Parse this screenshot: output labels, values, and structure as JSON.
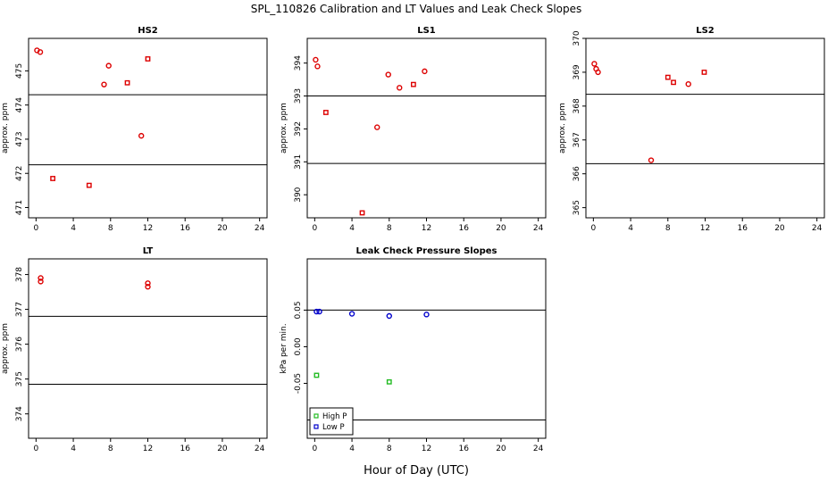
{
  "figure": {
    "title": "SPL_110826  Calibration and LT Values and Leak Check Slopes",
    "xlabel": "Hour of Day (UTC)"
  },
  "colors": {
    "red": "#dd0000",
    "green": "#22bb22",
    "blue": "#0000cc",
    "line": "#000000"
  },
  "chart_data": [
    {
      "type": "scatter",
      "title": "HS2",
      "ylabel": "approx. ppm",
      "xlim": [
        -0.8,
        24.8
      ],
      "ylim": [
        470.7,
        475.95
      ],
      "xticks": [
        0,
        4,
        8,
        12,
        16,
        20,
        24
      ],
      "yticks": [
        471,
        472,
        473,
        474,
        475
      ],
      "hlines": [
        474.3,
        472.25
      ],
      "series": [
        {
          "color": "red",
          "marker": "circle",
          "x": [
            0.1,
            0.45,
            7.3,
            7.8,
            11.3
          ],
          "y": [
            475.6,
            475.55,
            474.6,
            475.15,
            473.1
          ]
        },
        {
          "color": "red",
          "marker": "square",
          "x": [
            1.8,
            5.7,
            9.8,
            12.0
          ],
          "y": [
            471.85,
            471.65,
            474.65,
            475.35
          ]
        }
      ]
    },
    {
      "type": "scatter",
      "title": "LS1",
      "ylabel": "approx. ppm",
      "xlim": [
        -0.8,
        24.8
      ],
      "ylim": [
        389.3,
        394.75
      ],
      "xticks": [
        0,
        4,
        8,
        12,
        16,
        20,
        24
      ],
      "yticks": [
        390,
        391,
        392,
        393,
        394
      ],
      "hlines": [
        393.0,
        390.95
      ],
      "series": [
        {
          "color": "red",
          "marker": "circle",
          "x": [
            0.1,
            0.3,
            6.7,
            7.9,
            9.1,
            11.8
          ],
          "y": [
            394.1,
            393.9,
            392.05,
            393.65,
            393.25,
            393.75
          ]
        },
        {
          "color": "red",
          "marker": "square",
          "x": [
            1.2,
            5.1,
            10.6
          ],
          "y": [
            392.5,
            389.45,
            393.35
          ]
        }
      ]
    },
    {
      "type": "scatter",
      "title": "LS2",
      "ylabel": "approx. ppm",
      "xlim": [
        -0.8,
        24.8
      ],
      "ylim": [
        364.7,
        370.0
      ],
      "xticks": [
        0,
        4,
        8,
        12,
        16,
        20,
        24
      ],
      "yticks": [
        365,
        366,
        367,
        368,
        369,
        370
      ],
      "hlines": [
        368.35,
        366.3
      ],
      "series": [
        {
          "color": "red",
          "marker": "circle",
          "x": [
            0.1,
            0.3,
            0.5,
            6.2,
            10.2
          ],
          "y": [
            369.25,
            369.1,
            369.0,
            366.4,
            368.65
          ]
        },
        {
          "color": "red",
          "marker": "square",
          "x": [
            8.0,
            8.6,
            11.9
          ],
          "y": [
            368.85,
            368.7,
            369.0
          ]
        }
      ]
    },
    {
      "type": "scatter",
      "title": "LT",
      "ylabel": "approx. ppm",
      "xlim": [
        -0.8,
        24.8
      ],
      "ylim": [
        373.3,
        378.45
      ],
      "xticks": [
        0,
        4,
        8,
        12,
        16,
        20,
        24
      ],
      "yticks": [
        374,
        375,
        376,
        377,
        378
      ],
      "hlines": [
        376.8,
        374.85
      ],
      "series": [
        {
          "color": "red",
          "marker": "circle",
          "x": [
            0.5,
            0.5,
            12.0,
            12.0
          ],
          "y": [
            377.9,
            377.8,
            377.75,
            377.65
          ]
        }
      ]
    },
    {
      "type": "scatter",
      "title": "Leak Check Pressure Slopes",
      "ylabel": "kPa per min.",
      "xlim": [
        -0.8,
        24.8
      ],
      "ylim": [
        -0.125,
        0.12
      ],
      "xticks": [
        0,
        4,
        8,
        12,
        16,
        20,
        24
      ],
      "yticks": [
        -0.05,
        0.0,
        0.05
      ],
      "ytick_labels": [
        "-0.05",
        "0.00",
        "0.05"
      ],
      "hlines": [
        0.05,
        -0.1
      ],
      "legend": "bottom-left",
      "series": [
        {
          "name": "High P",
          "color": "green",
          "marker": "square",
          "x": [
            0.2,
            8.0
          ],
          "y": [
            -0.039,
            -0.048
          ]
        },
        {
          "name": "Low P",
          "color": "blue",
          "marker": "circle",
          "x": [
            0.2,
            0.5,
            4.0,
            8.0,
            12.0
          ],
          "y": [
            0.048,
            0.048,
            0.045,
            0.042,
            0.044
          ]
        }
      ]
    }
  ]
}
